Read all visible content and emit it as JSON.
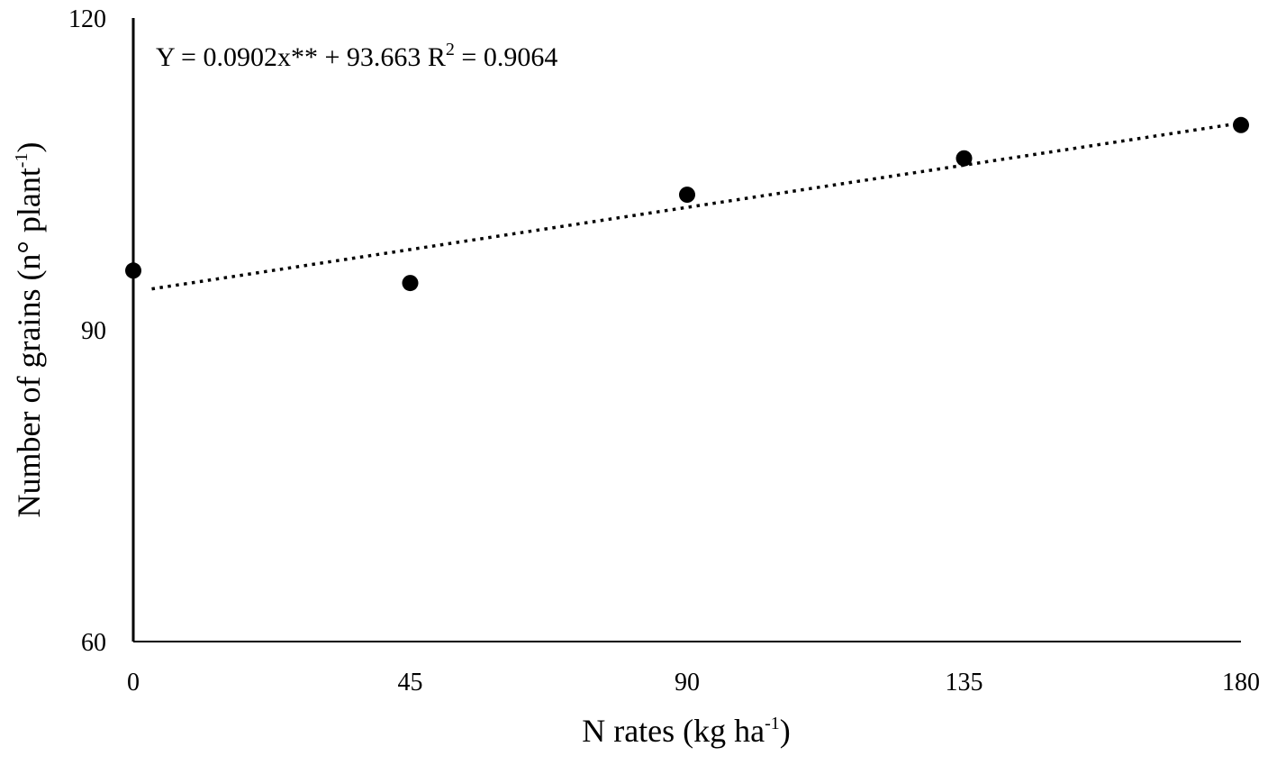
{
  "chart_data": {
    "type": "scatter",
    "title": "",
    "xlabel": "N rates (kg ha",
    "xlabel_superscript": "-1",
    "xlabel_suffix": ")",
    "ylabel": "Number of grains (n° plant",
    "ylabel_superscript": "-1",
    "ylabel_suffix": ")",
    "xlim": [
      0,
      180
    ],
    "ylim": [
      60,
      120
    ],
    "x_ticks": [
      0,
      45,
      90,
      135,
      180
    ],
    "y_ticks": [
      60,
      90,
      120
    ],
    "grid": false,
    "legend": "none",
    "series": [
      {
        "x": [
          0,
          45,
          90,
          135,
          180
        ],
        "values": [
          95.7,
          94.5,
          103.0,
          106.5,
          109.7
        ],
        "marker": "filled-circle",
        "color": "#000000"
      }
    ],
    "trendline": {
      "style": "dotted",
      "slope": 0.0902,
      "intercept": 93.663,
      "color": "#000000"
    },
    "annotation": {
      "equation_text": "Y = 0.0902x**  + 93.663  R",
      "equation_sup": "2",
      "equation_suffix": " = 0.9064"
    }
  }
}
